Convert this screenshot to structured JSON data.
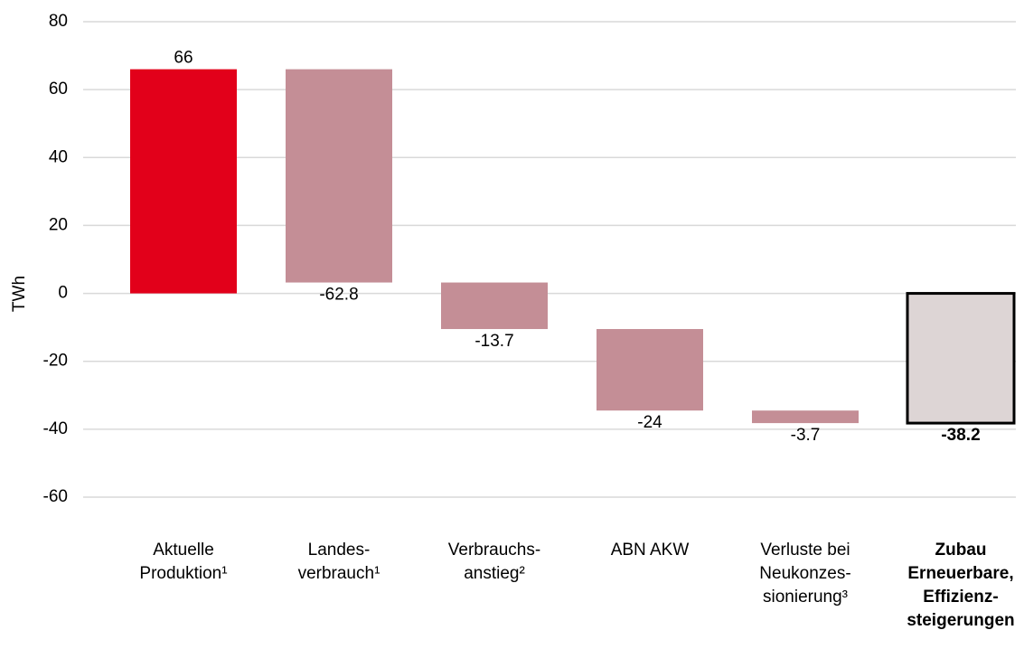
{
  "chart_data": {
    "type": "waterfall",
    "y_label": "TWh",
    "categories": [
      [
        "Aktuelle",
        "Produktion¹"
      ],
      [
        "Landes-",
        "verbrauch¹"
      ],
      [
        "Verbrauchs-",
        "anstieg²"
      ],
      [
        "ABN AKW"
      ],
      [
        "Verluste bei",
        "Neukonzes-",
        "sionierung³"
      ],
      [
        "Zubau",
        "Erneuerbare,",
        "Effizienz-",
        "steigerungen"
      ]
    ],
    "values": [
      66,
      -62.8,
      -13.7,
      -24,
      -3.7,
      -38.2
    ],
    "total": [
      true,
      false,
      false,
      false,
      false,
      true
    ],
    "emphasis": [
      false,
      false,
      false,
      false,
      false,
      true
    ],
    "colors": [
      "#e2001a",
      "#c48e96",
      "#c48e96",
      "#c48e96",
      "#c48e96",
      "#ddd5d5"
    ],
    "ylim": [
      -60,
      80
    ],
    "yticks": [
      -60,
      -40,
      -20,
      0,
      20,
      40,
      60,
      80
    ],
    "grid": true
  }
}
